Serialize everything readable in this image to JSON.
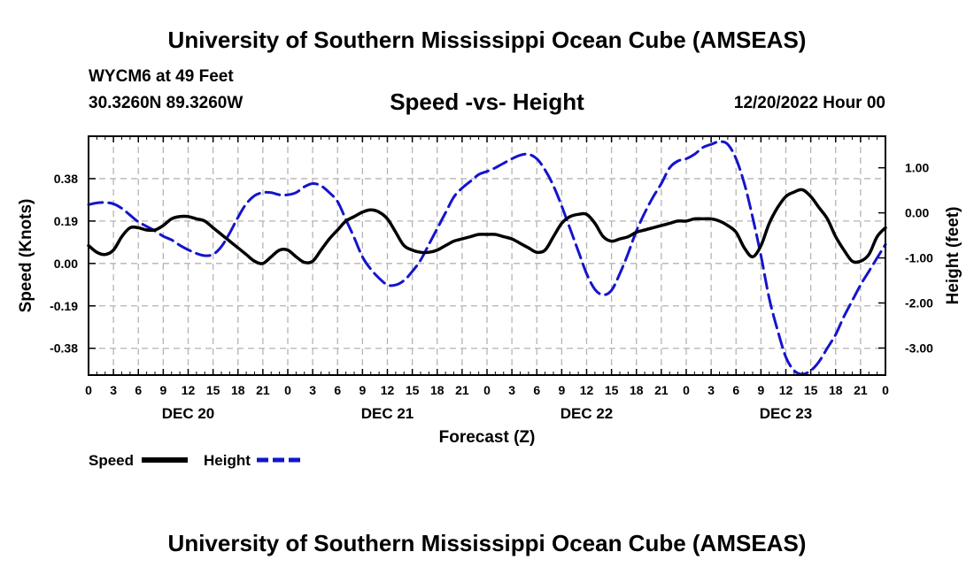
{
  "header": {
    "title": "University of Southern Mississippi Ocean Cube (AMSEAS)",
    "station": "WYCM6 at 49 Feet",
    "coords": "30.3260N  89.3260W",
    "subtitle": "Speed -vs- Height",
    "datetime": "12/20/2022 Hour 00"
  },
  "footer": {
    "title": "University of Southern Mississippi Ocean Cube (AMSEAS)"
  },
  "chart_data": {
    "type": "line",
    "title": "Speed -vs- Height",
    "xlabel": "Forecast (Z)",
    "ylabel": "Speed (Knots)",
    "y2label": "Height (feet)",
    "xlim": [
      0,
      96
    ],
    "ylim": [
      -0.5,
      0.57
    ],
    "y2lim": [
      -3.6,
      1.7
    ],
    "grid": true,
    "x_ticks": [
      0,
      3,
      6,
      9,
      12,
      15,
      18,
      21,
      24,
      27,
      30,
      33,
      36,
      39,
      42,
      45,
      48,
      51,
      54,
      57,
      60,
      63,
      66,
      69,
      72,
      75,
      78,
      81,
      84,
      87,
      90,
      93,
      96
    ],
    "x_tick_labels": [
      "0",
      "3",
      "6",
      "9",
      "12",
      "15",
      "18",
      "21",
      "0",
      "3",
      "6",
      "9",
      "12",
      "15",
      "18",
      "21",
      "0",
      "3",
      "6",
      "9",
      "12",
      "15",
      "18",
      "21",
      "0",
      "3",
      "6",
      "9",
      "12",
      "15",
      "18",
      "21",
      "0"
    ],
    "date_labels": [
      {
        "x": 12,
        "label": "DEC 20"
      },
      {
        "x": 36,
        "label": "DEC 21"
      },
      {
        "x": 60,
        "label": "DEC 22"
      },
      {
        "x": 84,
        "label": "DEC 23"
      }
    ],
    "y_ticks": [
      0.38,
      0.19,
      0.0,
      -0.19,
      -0.38
    ],
    "y_tick_labels": [
      "0.38",
      "0.19",
      "0.00",
      "-0.19",
      "-0.38"
    ],
    "y2_ticks": [
      1,
      0,
      -1,
      -2,
      -3
    ],
    "y2_tick_labels": [
      "1.00",
      "0.00",
      "-1.00",
      "-2.00",
      "-3.00"
    ],
    "series": [
      {
        "name": "Speed",
        "axis": "left",
        "color": "#000000",
        "dash": "solid",
        "x": [
          0,
          1,
          2,
          3,
          4,
          5,
          6,
          7,
          8,
          9,
          10,
          11,
          12,
          13,
          14,
          15,
          16,
          17,
          18,
          19,
          20,
          21,
          22,
          23,
          24,
          25,
          26,
          27,
          28,
          29,
          30,
          31,
          32,
          33,
          34,
          35,
          36,
          37,
          38,
          39,
          40,
          41,
          42,
          43,
          44,
          45,
          46,
          47,
          48,
          49,
          50,
          51,
          52,
          53,
          54,
          55,
          56,
          57,
          58,
          59,
          60,
          61,
          62,
          63,
          64,
          65,
          66,
          67,
          68,
          69,
          70,
          71,
          72,
          73,
          74,
          75,
          76,
          77,
          78,
          79,
          80,
          81,
          82,
          83,
          84,
          85,
          86,
          87,
          88,
          89,
          90,
          91,
          92,
          93,
          94,
          95,
          96
        ],
        "values": [
          0.08,
          0.05,
          0.04,
          0.06,
          0.12,
          0.16,
          0.16,
          0.15,
          0.15,
          0.17,
          0.2,
          0.21,
          0.21,
          0.2,
          0.19,
          0.16,
          0.13,
          0.1,
          0.07,
          0.04,
          0.01,
          0.0,
          0.03,
          0.06,
          0.06,
          0.03,
          0.005,
          0.01,
          0.06,
          0.11,
          0.15,
          0.19,
          0.21,
          0.23,
          0.24,
          0.23,
          0.2,
          0.14,
          0.08,
          0.06,
          0.05,
          0.05,
          0.06,
          0.08,
          0.1,
          0.11,
          0.12,
          0.13,
          0.13,
          0.13,
          0.12,
          0.11,
          0.09,
          0.07,
          0.05,
          0.06,
          0.12,
          0.18,
          0.21,
          0.22,
          0.22,
          0.18,
          0.12,
          0.1,
          0.11,
          0.12,
          0.14,
          0.15,
          0.16,
          0.17,
          0.18,
          0.19,
          0.19,
          0.2,
          0.2,
          0.2,
          0.19,
          0.17,
          0.14,
          0.07,
          0.03,
          0.08,
          0.18,
          0.25,
          0.3,
          0.32,
          0.33,
          0.3,
          0.25,
          0.2,
          0.12,
          0.06,
          0.01,
          0.01,
          0.04,
          0.12,
          0.16
        ]
      },
      {
        "name": "Height",
        "axis": "right",
        "color": "#1414cc",
        "dash": "dashed",
        "x": [
          0,
          1,
          2,
          3,
          4,
          5,
          6,
          7,
          8,
          9,
          10,
          11,
          12,
          13,
          14,
          15,
          16,
          17,
          18,
          19,
          20,
          21,
          22,
          23,
          24,
          25,
          26,
          27,
          28,
          29,
          30,
          31,
          32,
          33,
          34,
          35,
          36,
          37,
          38,
          39,
          40,
          41,
          42,
          43,
          44,
          45,
          46,
          47,
          48,
          49,
          50,
          51,
          52,
          53,
          54,
          55,
          56,
          57,
          58,
          59,
          60,
          61,
          62,
          63,
          64,
          65,
          66,
          67,
          68,
          69,
          70,
          71,
          72,
          73,
          74,
          75,
          76,
          77,
          78,
          79,
          80,
          81,
          82,
          83,
          84,
          85,
          86,
          87,
          88,
          89,
          90,
          91,
          92,
          93,
          94,
          95,
          96
        ],
        "values": [
          0.18,
          0.22,
          0.23,
          0.2,
          0.1,
          -0.05,
          -0.2,
          -0.3,
          -0.4,
          -0.52,
          -0.6,
          -0.72,
          -0.82,
          -0.9,
          -0.95,
          -0.92,
          -0.75,
          -0.45,
          -0.1,
          0.2,
          0.38,
          0.45,
          0.45,
          0.4,
          0.4,
          0.45,
          0.58,
          0.65,
          0.6,
          0.45,
          0.25,
          -0.15,
          -0.55,
          -0.98,
          -1.25,
          -1.45,
          -1.6,
          -1.6,
          -1.5,
          -1.3,
          -1.05,
          -0.7,
          -0.35,
          0.0,
          0.35,
          0.55,
          0.7,
          0.85,
          0.92,
          1.0,
          1.1,
          1.2,
          1.28,
          1.3,
          1.2,
          0.95,
          0.6,
          0.15,
          -0.35,
          -0.85,
          -1.35,
          -1.7,
          -1.82,
          -1.72,
          -1.35,
          -0.9,
          -0.4,
          0.0,
          0.35,
          0.65,
          1.0,
          1.15,
          1.2,
          1.3,
          1.45,
          1.52,
          1.58,
          1.52,
          1.2,
          0.65,
          -0.1,
          -0.95,
          -1.9,
          -2.6,
          -3.2,
          -3.5,
          -3.58,
          -3.5,
          -3.3,
          -3.0,
          -2.7,
          -2.3,
          -1.95,
          -1.6,
          -1.3,
          -1.0,
          -0.7
        ]
      }
    ],
    "legend": [
      {
        "label": "Speed",
        "color": "#000000",
        "dash": "solid"
      },
      {
        "label": "Height",
        "color": "#1414cc",
        "dash": "dashed"
      }
    ],
    "legend_position": "bottom-left"
  }
}
